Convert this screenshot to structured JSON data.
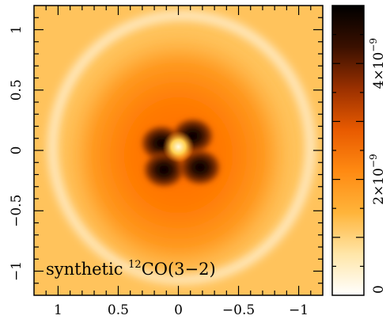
{
  "chart_data": {
    "type": "heatmap",
    "title": "",
    "xlabel": "",
    "ylabel": "",
    "xlim": [
      1.2,
      -1.2
    ],
    "ylim": [
      -1.2,
      1.2
    ],
    "x_ticks": [
      {
        "value": 1,
        "label": "1"
      },
      {
        "value": 0.5,
        "label": "0.5"
      },
      {
        "value": 0,
        "label": "0"
      },
      {
        "value": -0.5,
        "label": "−0.5"
      },
      {
        "value": -1,
        "label": "−1"
      }
    ],
    "y_ticks": [
      {
        "value": 1,
        "label": "1"
      },
      {
        "value": 0.5,
        "label": "0.5"
      },
      {
        "value": 0,
        "label": "0"
      },
      {
        "value": -0.5,
        "label": "−0.5"
      },
      {
        "value": -1,
        "label": "−1"
      }
    ],
    "annotation": {
      "prefix": "synthetic ",
      "superscript": "12",
      "text": "CO(3−2)"
    },
    "colorbar": {
      "range": [
        0,
        5e-09
      ],
      "colors": [
        "#ffffff",
        "#ffe6a8",
        "#ffb43a",
        "#ff8a12",
        "#e85a00",
        "#9a3000",
        "#3a1000",
        "#000000"
      ],
      "ticks": [
        {
          "value": 0,
          "label": "0"
        },
        {
          "value": 2e-09,
          "mantissa": "2",
          "exponent": "−9"
        },
        {
          "value": 4e-09,
          "mantissa": "4",
          "exponent": "−9"
        }
      ],
      "times_sign": "×10"
    },
    "features": {
      "central_peak": {
        "x": 0.0,
        "y": 0.03
      },
      "dark_lobes": [
        {
          "x": 0.14,
          "y": 0.06
        },
        {
          "x": -0.12,
          "y": 0.12
        },
        {
          "x": 0.12,
          "y": -0.16
        },
        {
          "x": -0.18,
          "y": -0.14
        }
      ],
      "ring_radius": 1.05
    }
  }
}
